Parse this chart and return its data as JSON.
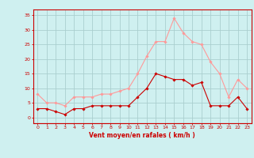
{
  "x": [
    0,
    1,
    2,
    3,
    4,
    5,
    6,
    7,
    8,
    9,
    10,
    11,
    12,
    13,
    14,
    15,
    16,
    17,
    18,
    19,
    20,
    21,
    22,
    23
  ],
  "wind_avg": [
    3,
    3,
    2,
    1,
    3,
    3,
    4,
    4,
    4,
    4,
    4,
    7,
    10,
    15,
    14,
    13,
    13,
    11,
    12,
    4,
    4,
    4,
    7,
    3
  ],
  "wind_gust": [
    8,
    5,
    5,
    4,
    7,
    7,
    7,
    8,
    8,
    9,
    10,
    15,
    21,
    26,
    26,
    34,
    29,
    26,
    25,
    19,
    15,
    7,
    13,
    10
  ],
  "bg_color": "#cff0f0",
  "grid_color": "#aacfcf",
  "avg_color": "#cc0000",
  "gust_color": "#ff9999",
  "xlabel": "Vent moyen/en rafales ( km/h )",
  "xlabel_color": "#cc0000",
  "tick_color": "#cc0000",
  "ylim": [
    -2,
    37
  ],
  "yticks": [
    0,
    5,
    10,
    15,
    20,
    25,
    30,
    35
  ],
  "spine_color": "#cc0000"
}
